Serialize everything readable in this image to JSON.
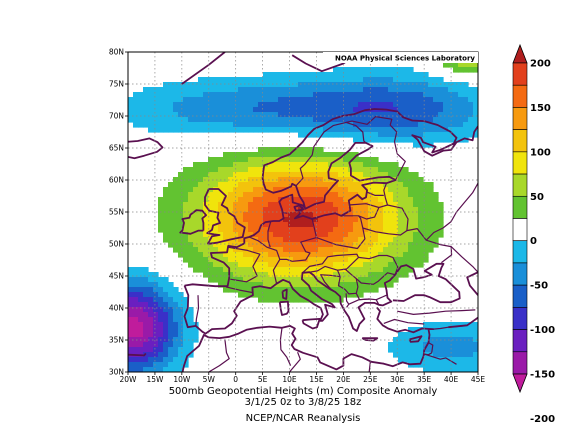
{
  "credit": "NOAA Physical Sciences Laboratory",
  "caption": {
    "line1": "500mb Geopotential Heights (m)   Composite Anomaly",
    "line2": "3/1/25 0z  to 3/8/25 18z",
    "line3": "NCEP/NCAR Reanalysis"
  },
  "map": {
    "lon_range": [
      -20,
      45
    ],
    "lat_range": [
      30,
      80
    ],
    "x_ticks": [
      "20W",
      "15W",
      "10W",
      "5W",
      "0",
      "5E",
      "10E",
      "15E",
      "20E",
      "25E",
      "30E",
      "35E",
      "40E",
      "45E"
    ],
    "y_ticks": [
      "30N",
      "35N",
      "40N",
      "45N",
      "50N",
      "55N",
      "60N",
      "65N",
      "70N",
      "75N",
      "80N"
    ],
    "grid": true
  },
  "colorbar": {
    "labels": [
      "200",
      "150",
      "100",
      "50",
      "0",
      "-50",
      "-100",
      "-150",
      "-200"
    ],
    "levels": [
      {
        "min": 200,
        "color": "#b01e1e"
      },
      {
        "min": 175,
        "color": "#e2401c"
      },
      {
        "min": 150,
        "color": "#f46a12"
      },
      {
        "min": 125,
        "color": "#f79a0f"
      },
      {
        "min": 100,
        "color": "#f3c30c"
      },
      {
        "min": 75,
        "color": "#f0e40c"
      },
      {
        "min": 50,
        "color": "#a8d82a"
      },
      {
        "min": 25,
        "color": "#62c331"
      },
      {
        "min": -25,
        "color": "#ffffff"
      },
      {
        "min": -50,
        "color": "#1cb8e8"
      },
      {
        "min": -75,
        "color": "#1a8fd9"
      },
      {
        "min": -100,
        "color": "#1a5fc8"
      },
      {
        "min": -125,
        "color": "#3a30c8"
      },
      {
        "min": -150,
        "color": "#6a1fc0"
      },
      {
        "min": -175,
        "color": "#9a1aa8"
      },
      {
        "min": -200,
        "color": "#c01c9c"
      }
    ]
  },
  "field": {
    "centers": [
      {
        "lon": 12,
        "lat": 54,
        "amp": 205,
        "sx": 13,
        "sy": 6.5
      },
      {
        "lon": -19,
        "lat": 37,
        "amp": -185,
        "sx": 6,
        "sy": 5
      },
      {
        "lon": 30,
        "lat": 71,
        "amp": -85,
        "sx": 13,
        "sy": 4
      },
      {
        "lon": 2,
        "lat": 71,
        "amp": -70,
        "sx": 17,
        "sy": 3.5
      },
      {
        "lon": 40,
        "lat": 34,
        "amp": -60,
        "sx": 9,
        "sy": 3
      },
      {
        "lon": 43,
        "lat": 79,
        "amp": 75,
        "sx": 4,
        "sy": 2
      }
    ]
  }
}
